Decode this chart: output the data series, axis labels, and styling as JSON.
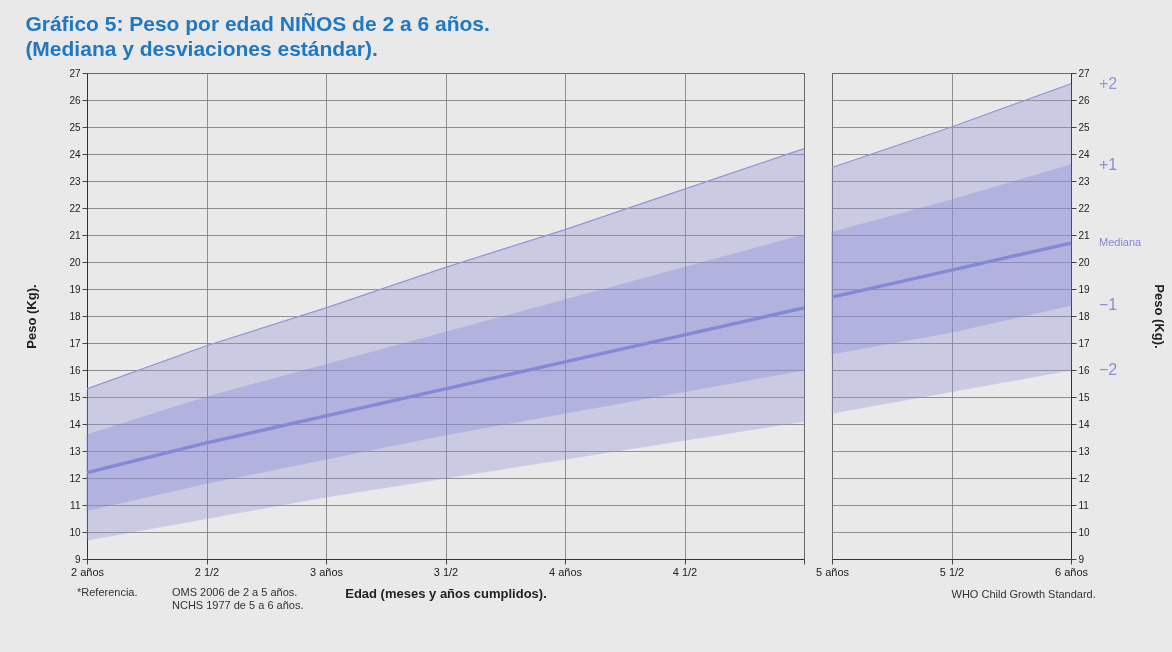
{
  "chart_data": [
    {
      "type": "line",
      "title": "Gráfico 5: Peso por edad NIÑOS de 2 a 6 años.",
      "subtitle": "(Mediana y desviaciones estándar).",
      "xlabel": "Edad (meses y años cumplidos).",
      "ylabel": "Peso (Kg).",
      "x": [
        2,
        2.5,
        3,
        3.5,
        4,
        4.5,
        5
      ],
      "series": [
        {
          "color": "#9396d8",
          "values": [
            15.3,
            16.9,
            18.3,
            19.8,
            21.2,
            22.7,
            24.2
          ],
          "lower": [
            9.7,
            10.5,
            11.3,
            12.0,
            12.7,
            13.4,
            14.1
          ],
          "upper": [
            15.3,
            16.9,
            18.3,
            19.8,
            21.2,
            22.7,
            24.2
          ]
        },
        {
          "color": "#8489d6",
          "values": [
            12.2,
            13.3,
            14.3,
            15.3,
            16.3,
            17.3,
            18.3
          ],
          "lower": [
            10.8,
            11.8,
            12.7,
            13.6,
            14.4,
            15.2,
            16.0
          ],
          "upper": [
            13.6,
            15.0,
            16.2,
            17.4,
            18.6,
            19.8,
            21.0
          ]
        }
      ],
      "xlim": [
        2,
        5
      ],
      "xticks": [
        {
          "value": 2,
          "label": "2 años"
        },
        {
          "value": 2.5,
          "label": "2 1/2"
        },
        {
          "value": 3,
          "label": "3 años"
        },
        {
          "value": 3.5,
          "label": "3 1/2"
        },
        {
          "value": 4,
          "label": "4 años"
        },
        {
          "value": 4.5,
          "label": "4 1/2"
        },
        {
          "value": 5,
          "label": null
        }
      ],
      "ylim": [
        9,
        27
      ],
      "yticks": [
        9,
        10,
        11,
        12,
        13,
        14,
        15,
        16,
        17,
        18,
        19,
        20,
        21,
        22,
        23,
        24,
        25,
        26,
        27
      ],
      "grid": true,
      "annotations": [
        "*Referencia.",
        "OMS 2006 de 2 a 5 años.",
        "NCHS 1977 de 5 a 6 años."
      ]
    },
    {
      "type": "line",
      "ylabel": "Peso (Kg).",
      "x": [
        5,
        5.5,
        6
      ],
      "series": [
        {
          "name": "+2",
          "color": "#9396d8",
          "values": [
            23.5,
            25.0,
            26.6
          ],
          "lower": [
            14.4,
            15.2,
            16.0
          ],
          "upper": [
            23.5,
            25.0,
            26.6
          ]
        },
        {
          "name": "Mediana",
          "color": "#8489d6",
          "values": [
            18.7,
            19.7,
            20.7
          ],
          "lower": [
            16.6,
            17.4,
            18.4
          ],
          "upper": [
            21.1,
            22.3,
            23.6
          ]
        }
      ],
      "xlim": [
        5,
        6
      ],
      "xticks": [
        {
          "value": 5,
          "label": "5 años"
        },
        {
          "value": 5.5,
          "label": "5 1/2"
        },
        {
          "value": 6,
          "label": "6 años"
        }
      ],
      "ylim": [
        9,
        27
      ],
      "yticks": [
        9,
        10,
        11,
        12,
        13,
        14,
        15,
        16,
        17,
        18,
        19,
        20,
        21,
        22,
        23,
        24,
        25,
        26,
        27
      ],
      "grid": true,
      "annotations": [
        "+1",
        "−1",
        "−2",
        "WHO Child Growth Standard."
      ]
    }
  ]
}
